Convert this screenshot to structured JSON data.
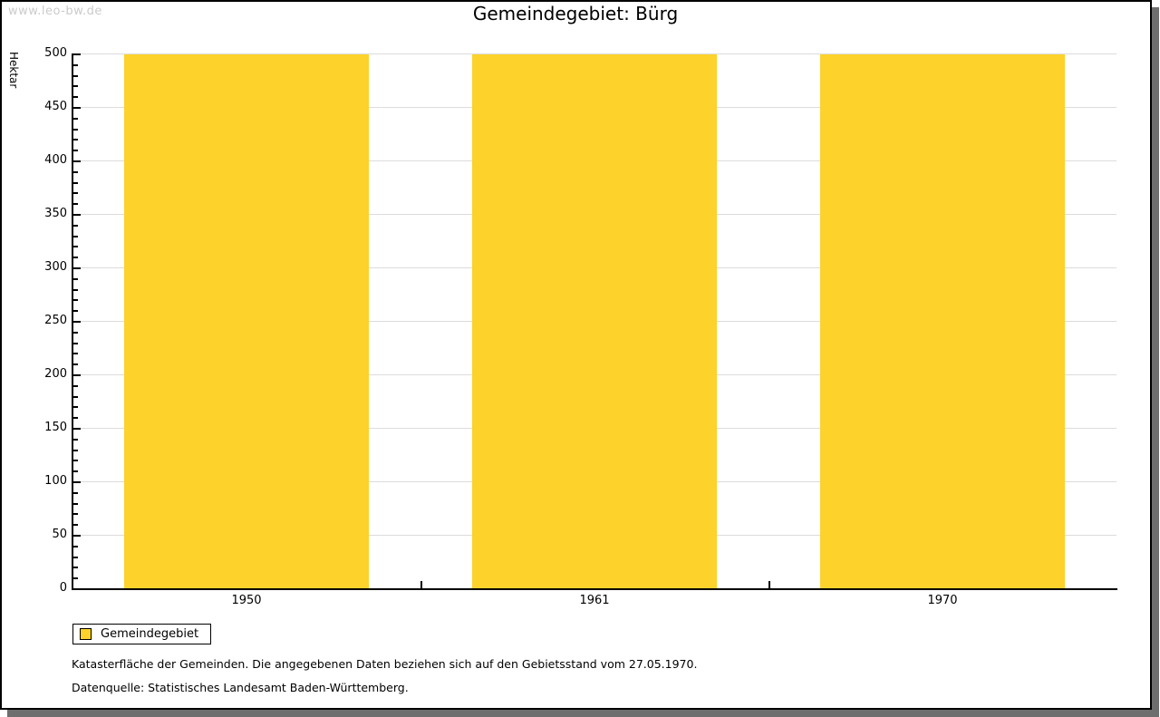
{
  "watermark": "www.leo-bw.de",
  "header": {
    "title": "Gemeindegebiet: Bürg"
  },
  "legend": {
    "label": "Gemeindegebiet"
  },
  "footnotes": {
    "line1": "Katasterfläche der Gemeinden. Die angegebenen Daten beziehen sich auf den Gebietsstand vom 27.05.1970.",
    "line2": "Datenquelle: Statistisches Landesamt Baden-Württemberg."
  },
  "colors": {
    "bar": "#FCD22B",
    "gridline": "#DCDCDC",
    "axis": "#000000",
    "frame_shadow": "#6E6E6E",
    "watermark_text": "#CBCBCB"
  },
  "chart_data": {
    "type": "bar",
    "title": "Gemeindegebiet: Bürg",
    "categories": [
      "1950",
      "1961",
      "1970"
    ],
    "series": [
      {
        "name": "Gemeindegebiet",
        "values": [
          499,
          499,
          499
        ]
      }
    ],
    "xlabel": "",
    "ylabel": "Hektar",
    "ylim": [
      0,
      500
    ],
    "ytick_major": 50,
    "ytick_minor": 10,
    "grid": true,
    "legend_position": "bottom-left",
    "bar_color": "#FCD22B"
  }
}
